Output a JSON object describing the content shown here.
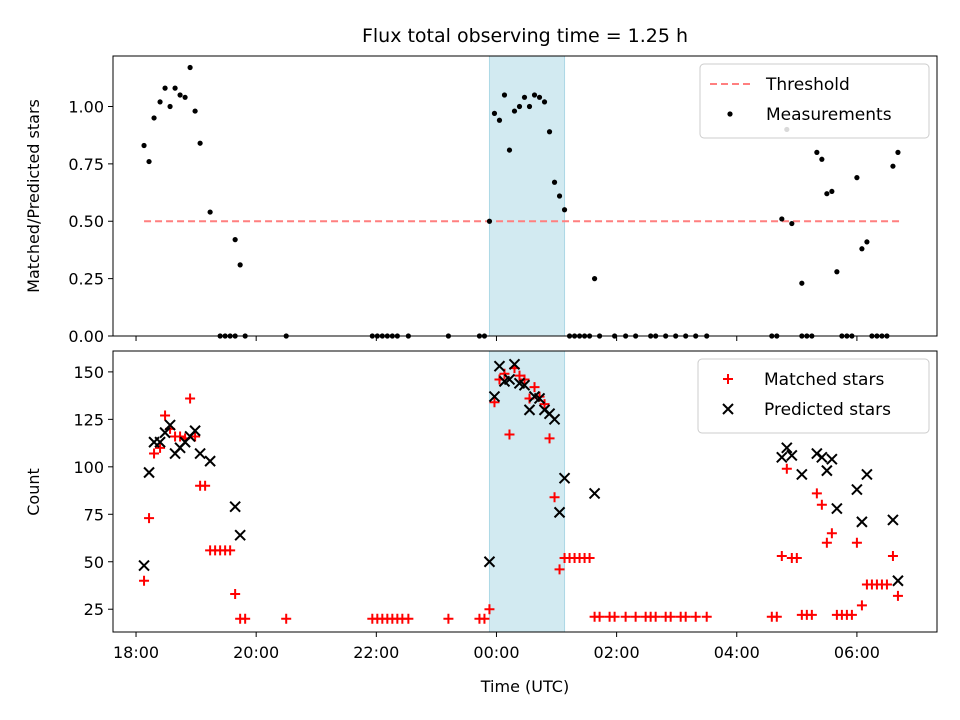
{
  "chart_data": {
    "type": "scatter",
    "title": "Flux total observing time = 1.25 h",
    "xlabel": "Time (UTC)",
    "x_unit": "UTC time",
    "x_range": [
      "17:37",
      "07:20"
    ],
    "x_ticks": [
      "18:00",
      "20:00",
      "22:00",
      "00:00",
      "02:00",
      "04:00",
      "06:00"
    ],
    "shaded_interval": {
      "start": "23:53",
      "end": "01:08",
      "color": "#add8e6"
    },
    "panels": [
      {
        "id": "ratio",
        "ylabel": "Matched/Predicted stars",
        "ylim": [
          0,
          1.22
        ],
        "yticks": [
          "0.00",
          "0.25",
          "0.50",
          "0.75",
          "1.00"
        ],
        "legend_position": "upper right",
        "series": [
          {
            "name": "Threshold",
            "kind": "dashed-line",
            "color": "#ff7f7f",
            "points": [
              [
                "18:08",
                0.5
              ],
              [
                "06:43",
                0.5
              ]
            ]
          },
          {
            "name": "Measurements",
            "kind": "dot",
            "color": "#000000",
            "points": [
              [
                "18:08",
                0.83
              ],
              [
                "18:13",
                0.76
              ],
              [
                "18:18",
                0.95
              ],
              [
                "18:24",
                1.02
              ],
              [
                "18:29",
                1.08
              ],
              [
                "18:34",
                1.0
              ],
              [
                "18:39",
                1.08
              ],
              [
                "18:44",
                1.05
              ],
              [
                "18:49",
                1.04
              ],
              [
                "18:54",
                1.17
              ],
              [
                "18:59",
                0.98
              ],
              [
                "19:04",
                0.84
              ],
              [
                "19:14",
                0.54
              ],
              [
                "19:39",
                0.42
              ],
              [
                "19:44",
                0.31
              ],
              [
                "19:24",
                0.0
              ],
              [
                "19:29",
                0.0
              ],
              [
                "19:34",
                0.0
              ],
              [
                "19:39",
                0.0
              ],
              [
                "19:49",
                0.0
              ],
              [
                "20:30",
                0.0
              ],
              [
                "21:56",
                0.0
              ],
              [
                "22:01",
                0.0
              ],
              [
                "22:06",
                0.0
              ],
              [
                "22:11",
                0.0
              ],
              [
                "22:16",
                0.0
              ],
              [
                "22:21",
                0.0
              ],
              [
                "22:32",
                0.0
              ],
              [
                "23:12",
                0.0
              ],
              [
                "23:43",
                0.0
              ],
              [
                "23:48",
                0.0
              ],
              [
                "23:53",
                0.5
              ],
              [
                "23:58",
                0.97
              ],
              [
                "00:03",
                0.94
              ],
              [
                "00:08",
                1.05
              ],
              [
                "00:13",
                0.81
              ],
              [
                "00:18",
                0.98
              ],
              [
                "00:23",
                1.0
              ],
              [
                "00:28",
                1.04
              ],
              [
                "00:33",
                1.0
              ],
              [
                "00:38",
                1.05
              ],
              [
                "00:43",
                1.04
              ],
              [
                "00:48",
                1.02
              ],
              [
                "00:53",
                0.89
              ],
              [
                "00:58",
                0.67
              ],
              [
                "01:03",
                0.61
              ],
              [
                "01:08",
                0.55
              ],
              [
                "01:13",
                0.0
              ],
              [
                "01:18",
                0.0
              ],
              [
                "01:23",
                0.0
              ],
              [
                "01:28",
                0.0
              ],
              [
                "01:33",
                0.0
              ],
              [
                "01:38",
                0.25
              ],
              [
                "01:43",
                0.0
              ],
              [
                "01:58",
                0.0
              ],
              [
                "02:09",
                0.0
              ],
              [
                "02:19",
                0.0
              ],
              [
                "02:34",
                0.0
              ],
              [
                "02:39",
                0.0
              ],
              [
                "02:49",
                0.0
              ],
              [
                "02:59",
                0.0
              ],
              [
                "03:09",
                0.0
              ],
              [
                "03:19",
                0.0
              ],
              [
                "03:30",
                0.0
              ],
              [
                "04:35",
                0.0
              ],
              [
                "04:40",
                0.0
              ],
              [
                "04:45",
                0.51
              ],
              [
                "04:50",
                0.9
              ],
              [
                "04:55",
                0.49
              ],
              [
                "05:05",
                0.23
              ],
              [
                "05:05",
                0.0
              ],
              [
                "05:10",
                0.0
              ],
              [
                "05:15",
                0.0
              ],
              [
                "05:20",
                0.8
              ],
              [
                "05:25",
                0.77
              ],
              [
                "05:30",
                0.62
              ],
              [
                "05:35",
                0.63
              ],
              [
                "05:40",
                0.28
              ],
              [
                "05:45",
                0.0
              ],
              [
                "05:50",
                0.0
              ],
              [
                "05:55",
                0.0
              ],
              [
                "06:00",
                0.69
              ],
              [
                "06:05",
                0.38
              ],
              [
                "06:10",
                0.41
              ],
              [
                "06:15",
                0.0
              ],
              [
                "06:20",
                0.0
              ],
              [
                "06:25",
                0.0
              ],
              [
                "06:30",
                0.0
              ],
              [
                "06:36",
                0.74
              ],
              [
                "06:41",
                0.8
              ]
            ]
          }
        ]
      },
      {
        "id": "count",
        "ylabel": "Count",
        "ylim": [
          13,
          161
        ],
        "yticks": [
          "25",
          "50",
          "75",
          "100",
          "125",
          "150"
        ],
        "legend_position": "upper right",
        "series": [
          {
            "name": "Matched stars",
            "kind": "plus",
            "color": "#ff0000",
            "points": [
              [
                "18:08",
                40
              ],
              [
                "18:13",
                73
              ],
              [
                "18:18",
                107
              ],
              [
                "18:24",
                110
              ],
              [
                "18:29",
                127
              ],
              [
                "18:34",
                120
              ],
              [
                "18:39",
                116
              ],
              [
                "18:44",
                116
              ],
              [
                "18:49",
                115
              ],
              [
                "18:54",
                136
              ],
              [
                "18:59",
                116
              ],
              [
                "19:04",
                90
              ],
              [
                "19:09",
                90
              ],
              [
                "19:14",
                56
              ],
              [
                "19:19",
                56
              ],
              [
                "19:24",
                56
              ],
              [
                "19:29",
                56
              ],
              [
                "19:34",
                56
              ],
              [
                "19:39",
                33
              ],
              [
                "19:44",
                20
              ],
              [
                "19:49",
                20
              ],
              [
                "20:30",
                20
              ],
              [
                "21:56",
                20
              ],
              [
                "22:01",
                20
              ],
              [
                "22:06",
                20
              ],
              [
                "22:11",
                20
              ],
              [
                "22:16",
                20
              ],
              [
                "22:21",
                20
              ],
              [
                "22:26",
                20
              ],
              [
                "22:32",
                20
              ],
              [
                "23:12",
                20
              ],
              [
                "23:43",
                20
              ],
              [
                "23:48",
                20
              ],
              [
                "23:53",
                25
              ],
              [
                "23:58",
                134
              ],
              [
                "00:03",
                146
              ],
              [
                "00:08",
                149
              ],
              [
                "00:13",
                117
              ],
              [
                "00:18",
                152
              ],
              [
                "00:23",
                148
              ],
              [
                "00:28",
                146
              ],
              [
                "00:33",
                136
              ],
              [
                "00:38",
                142
              ],
              [
                "00:43",
                137
              ],
              [
                "00:48",
                133
              ],
              [
                "00:53",
                115
              ],
              [
                "00:58",
                84
              ],
              [
                "01:03",
                46
              ],
              [
                "01:08",
                52
              ],
              [
                "01:13",
                52
              ],
              [
                "01:18",
                52
              ],
              [
                "01:23",
                52
              ],
              [
                "01:28",
                52
              ],
              [
                "01:33",
                52
              ],
              [
                "01:38",
                21
              ],
              [
                "01:43",
                21
              ],
              [
                "01:53",
                21
              ],
              [
                "01:58",
                21
              ],
              [
                "02:09",
                21
              ],
              [
                "02:19",
                21
              ],
              [
                "02:29",
                21
              ],
              [
                "02:34",
                21
              ],
              [
                "02:39",
                21
              ],
              [
                "02:49",
                21
              ],
              [
                "02:54",
                21
              ],
              [
                "03:04",
                21
              ],
              [
                "03:09",
                21
              ],
              [
                "03:19",
                21
              ],
              [
                "03:30",
                21
              ],
              [
                "04:35",
                21
              ],
              [
                "04:40",
                21
              ],
              [
                "04:45",
                53
              ],
              [
                "04:50",
                99
              ],
              [
                "04:55",
                52
              ],
              [
                "05:00",
                52
              ],
              [
                "05:05",
                22
              ],
              [
                "05:10",
                22
              ],
              [
                "05:15",
                22
              ],
              [
                "05:20",
                86
              ],
              [
                "05:25",
                80
              ],
              [
                "05:30",
                60
              ],
              [
                "05:35",
                65
              ],
              [
                "05:40",
                22
              ],
              [
                "05:45",
                22
              ],
              [
                "05:50",
                22
              ],
              [
                "05:55",
                22
              ],
              [
                "06:00",
                60
              ],
              [
                "06:05",
                27
              ],
              [
                "06:10",
                38
              ],
              [
                "06:15",
                38
              ],
              [
                "06:20",
                38
              ],
              [
                "06:25",
                38
              ],
              [
                "06:30",
                38
              ],
              [
                "06:36",
                53
              ],
              [
                "06:41",
                32
              ]
            ]
          },
          {
            "name": "Predicted stars",
            "kind": "x",
            "color": "#000000",
            "points": [
              [
                "18:08",
                48
              ],
              [
                "18:13",
                97
              ],
              [
                "18:18",
                113
              ],
              [
                "18:24",
                113
              ],
              [
                "18:29",
                118
              ],
              [
                "18:34",
                122
              ],
              [
                "18:39",
                107
              ],
              [
                "18:44",
                110
              ],
              [
                "18:49",
                113
              ],
              [
                "18:54",
                116
              ],
              [
                "18:59",
                119
              ],
              [
                "19:04",
                107
              ],
              [
                "19:14",
                103
              ],
              [
                "19:39",
                79
              ],
              [
                "19:44",
                64
              ],
              [
                "23:53",
                50
              ],
              [
                "23:58",
                137
              ],
              [
                "00:03",
                153
              ],
              [
                "00:08",
                145
              ],
              [
                "00:13",
                146
              ],
              [
                "00:18",
                154
              ],
              [
                "00:23",
                144
              ],
              [
                "00:28",
                143
              ],
              [
                "00:33",
                130
              ],
              [
                "00:38",
                137
              ],
              [
                "00:43",
                136
              ],
              [
                "00:48",
                130
              ],
              [
                "00:53",
                128
              ],
              [
                "00:58",
                125
              ],
              [
                "01:03",
                76
              ],
              [
                "01:08",
                94
              ],
              [
                "01:38",
                86
              ],
              [
                "04:45",
                105
              ],
              [
                "04:50",
                110
              ],
              [
                "04:55",
                106
              ],
              [
                "05:05",
                96
              ],
              [
                "05:20",
                107
              ],
              [
                "05:25",
                105
              ],
              [
                "05:30",
                98
              ],
              [
                "05:35",
                104
              ],
              [
                "05:40",
                78
              ],
              [
                "06:00",
                88
              ],
              [
                "06:05",
                71
              ],
              [
                "06:10",
                96
              ],
              [
                "06:36",
                72
              ],
              [
                "06:41",
                40
              ]
            ]
          }
        ]
      }
    ]
  }
}
